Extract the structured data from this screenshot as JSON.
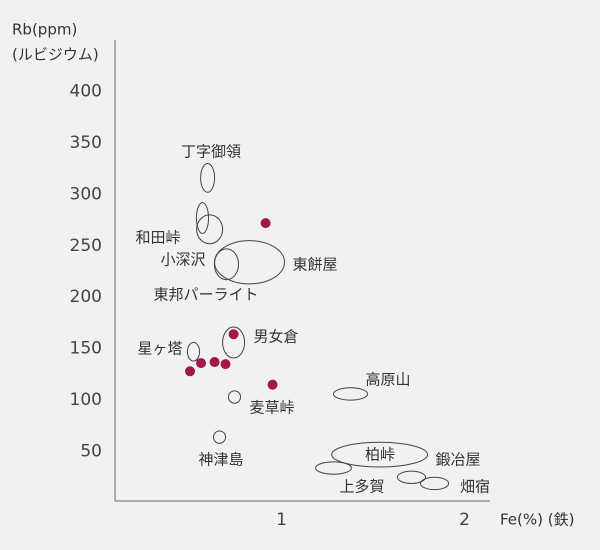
{
  "chart_data": {
    "type": "scatter",
    "y_label": [
      "Rb(ppm)",
      "(ルビジウム)"
    ],
    "x_label": "Fe(%) (鉄)",
    "xlim": [
      0.09,
      2.15
    ],
    "ylim": [
      0,
      450
    ],
    "xticks": [
      1,
      2
    ],
    "yticks": [
      50,
      100,
      150,
      200,
      250,
      300,
      350,
      400
    ],
    "point_color": "#a3174c",
    "points": {
      "x": [
        0.5,
        0.56,
        0.634,
        0.694,
        0.738,
        0.913,
        0.951
      ],
      "y": [
        128,
        136,
        137,
        135,
        164,
        272,
        115
      ]
    },
    "regions": [
      {
        "name": "丁字御領",
        "ellipses": [
          {
            "x": 0.596,
            "y": 316,
            "rx": 0.038,
            "ry": 14
          }
        ]
      },
      {
        "name": "和田峠",
        "ellipses": [
          {
            "x": 0.607,
            "y": 266,
            "rx": 0.071,
            "ry": 14
          },
          {
            "x": 0.568,
            "y": 277,
            "rx": 0.033,
            "ry": 15
          }
        ]
      },
      {
        "name": "小深沢",
        "ellipses": [
          {
            "x": 0.699,
            "y": 232,
            "rx": 0.066,
            "ry": 15
          }
        ]
      },
      {
        "name": "東餅屋",
        "ellipses": [
          {
            "x": 0.825,
            "y": 234,
            "rx": 0.191,
            "ry": 21
          }
        ]
      },
      {
        "name": "東邦パーライト",
        "ellipses": []
      },
      {
        "name": "星ヶ塔",
        "ellipses": [
          {
            "x": 0.519,
            "y": 147,
            "rx": 0.033,
            "ry": 9
          }
        ]
      },
      {
        "name": "男女倉",
        "ellipses": [
          {
            "x": 0.738,
            "y": 156,
            "rx": 0.06,
            "ry": 15
          }
        ]
      },
      {
        "name": "麦草峠",
        "ellipses": [
          {
            "x": 0.743,
            "y": 103,
            "rx": 0.033,
            "ry": 6
          }
        ]
      },
      {
        "name": "神津島",
        "ellipses": [
          {
            "x": 0.661,
            "y": 64,
            "rx": 0.033,
            "ry": 6
          }
        ]
      },
      {
        "name": "高原山",
        "ellipses": [
          {
            "x": 1.377,
            "y": 106,
            "rx": 0.093,
            "ry": 6
          }
        ]
      },
      {
        "name": "柏峠",
        "ellipses": [
          {
            "x": 1.536,
            "y": 47,
            "rx": 0.262,
            "ry": 12
          }
        ]
      },
      {
        "name": "鍛冶屋",
        "ellipses": [
          {
            "x": 1.71,
            "y": 25,
            "rx": 0.077,
            "ry": 6
          }
        ]
      },
      {
        "name": "上多賀",
        "ellipses": [
          {
            "x": 1.284,
            "y": 34,
            "rx": 0.098,
            "ry": 6
          }
        ]
      },
      {
        "name": "畑宿",
        "ellipses": [
          {
            "x": 1.836,
            "y": 19,
            "rx": 0.077,
            "ry": 6
          }
        ]
      }
    ]
  }
}
